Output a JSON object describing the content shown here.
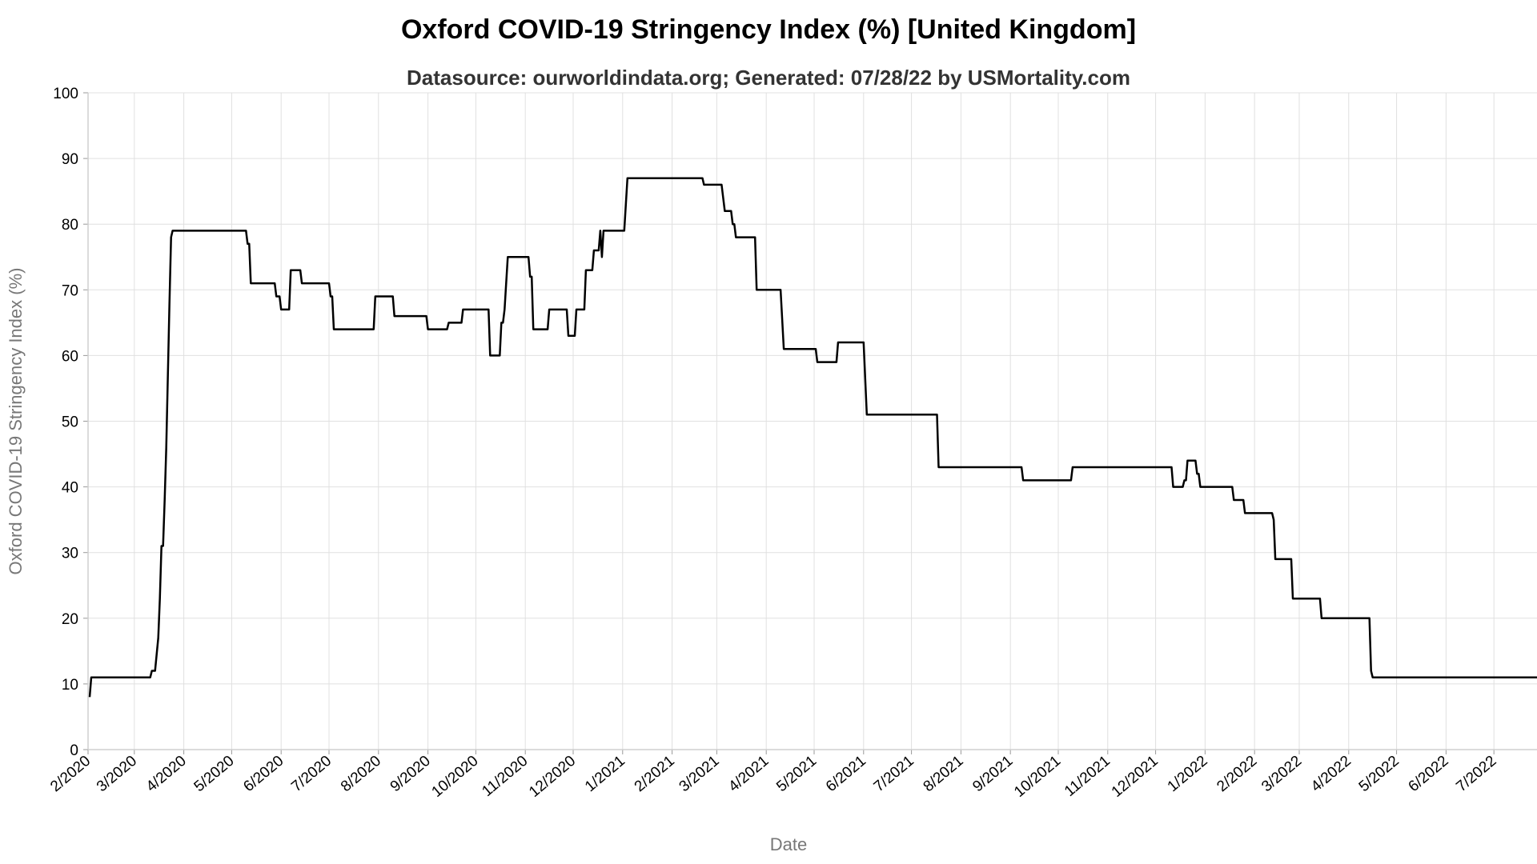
{
  "chart_data": {
    "type": "line",
    "title": "Oxford COVID-19 Stringency Index (%) [United Kingdom]",
    "subtitle": "Datasource: ourworldindata.org; Generated: 07/28/22 by USMortality.com",
    "xlabel": "Date",
    "ylabel": "Oxford COVID-19 Stringency Index (%)",
    "ylim": [
      0,
      100
    ],
    "xlim": [
      "2020-02-01",
      "2022-07-28"
    ],
    "yticks": [
      0,
      10,
      20,
      30,
      40,
      50,
      60,
      70,
      80,
      90,
      100
    ],
    "xticks": [
      {
        "date": "2020-02-01",
        "label": "2/2020"
      },
      {
        "date": "2020-03-01",
        "label": "3/2020"
      },
      {
        "date": "2020-04-01",
        "label": "4/2020"
      },
      {
        "date": "2020-05-01",
        "label": "5/2020"
      },
      {
        "date": "2020-06-01",
        "label": "6/2020"
      },
      {
        "date": "2020-07-01",
        "label": "7/2020"
      },
      {
        "date": "2020-08-01",
        "label": "8/2020"
      },
      {
        "date": "2020-09-01",
        "label": "9/2020"
      },
      {
        "date": "2020-10-01",
        "label": "10/2020"
      },
      {
        "date": "2020-11-01",
        "label": "11/2020"
      },
      {
        "date": "2020-12-01",
        "label": "12/2020"
      },
      {
        "date": "2021-01-01",
        "label": "1/2021"
      },
      {
        "date": "2021-02-01",
        "label": "2/2021"
      },
      {
        "date": "2021-03-01",
        "label": "3/2021"
      },
      {
        "date": "2021-04-01",
        "label": "4/2021"
      },
      {
        "date": "2021-05-01",
        "label": "5/2021"
      },
      {
        "date": "2021-06-01",
        "label": "6/2021"
      },
      {
        "date": "2021-07-01",
        "label": "7/2021"
      },
      {
        "date": "2021-08-01",
        "label": "8/2021"
      },
      {
        "date": "2021-09-01",
        "label": "9/2021"
      },
      {
        "date": "2021-10-01",
        "label": "10/2021"
      },
      {
        "date": "2021-11-01",
        "label": "11/2021"
      },
      {
        "date": "2021-12-01",
        "label": "12/2021"
      },
      {
        "date": "2022-01-01",
        "label": "1/2022"
      },
      {
        "date": "2022-02-01",
        "label": "2/2022"
      },
      {
        "date": "2022-03-01",
        "label": "3/2022"
      },
      {
        "date": "2022-04-01",
        "label": "4/2022"
      },
      {
        "date": "2022-05-01",
        "label": "5/2022"
      },
      {
        "date": "2022-06-01",
        "label": "6/2022"
      },
      {
        "date": "2022-07-01",
        "label": "7/2022"
      }
    ],
    "grid": true,
    "line_color": "#000000",
    "grid_color": "#e0e0e0",
    "series": [
      {
        "points": [
          [
            "2020-02-02",
            8
          ],
          [
            "2020-02-03",
            11
          ],
          [
            "2020-03-11",
            11
          ],
          [
            "2020-03-12",
            12
          ],
          [
            "2020-03-14",
            12
          ],
          [
            "2020-03-16",
            17
          ],
          [
            "2020-03-17",
            23
          ],
          [
            "2020-03-18",
            31
          ],
          [
            "2020-03-19",
            31
          ],
          [
            "2020-03-20",
            38
          ],
          [
            "2020-03-21",
            46
          ],
          [
            "2020-03-22",
            57
          ],
          [
            "2020-03-23",
            68
          ],
          [
            "2020-03-24",
            78
          ],
          [
            "2020-03-25",
            79
          ],
          [
            "2020-05-10",
            79
          ],
          [
            "2020-05-11",
            77
          ],
          [
            "2020-05-12",
            77
          ],
          [
            "2020-05-13",
            71
          ],
          [
            "2020-05-28",
            71
          ],
          [
            "2020-05-29",
            69
          ],
          [
            "2020-05-31",
            69
          ],
          [
            "2020-06-01",
            67
          ],
          [
            "2020-06-06",
            67
          ],
          [
            "2020-06-07",
            73
          ],
          [
            "2020-06-13",
            73
          ],
          [
            "2020-06-14",
            71
          ],
          [
            "2020-07-01",
            71
          ],
          [
            "2020-07-02",
            69
          ],
          [
            "2020-07-03",
            69
          ],
          [
            "2020-07-04",
            64
          ],
          [
            "2020-07-29",
            64
          ],
          [
            "2020-07-30",
            69
          ],
          [
            "2020-08-10",
            69
          ],
          [
            "2020-08-11",
            66
          ],
          [
            "2020-08-31",
            66
          ],
          [
            "2020-09-01",
            64
          ],
          [
            "2020-09-13",
            64
          ],
          [
            "2020-09-14",
            65
          ],
          [
            "2020-09-22",
            65
          ],
          [
            "2020-09-23",
            67
          ],
          [
            "2020-10-09",
            67
          ],
          [
            "2020-10-10",
            60
          ],
          [
            "2020-10-16",
            60
          ],
          [
            "2020-10-17",
            65
          ],
          [
            "2020-10-18",
            65
          ],
          [
            "2020-10-19",
            67
          ],
          [
            "2020-10-21",
            75
          ],
          [
            "2020-11-03",
            75
          ],
          [
            "2020-11-04",
            72
          ],
          [
            "2020-11-05",
            72
          ],
          [
            "2020-11-06",
            64
          ],
          [
            "2020-11-15",
            64
          ],
          [
            "2020-11-16",
            67
          ],
          [
            "2020-11-27",
            67
          ],
          [
            "2020-11-28",
            63
          ],
          [
            "2020-12-02",
            63
          ],
          [
            "2020-12-03",
            67
          ],
          [
            "2020-12-08",
            67
          ],
          [
            "2020-12-09",
            73
          ],
          [
            "2020-12-13",
            73
          ],
          [
            "2020-12-14",
            76
          ],
          [
            "2020-12-17",
            76
          ],
          [
            "2020-12-18",
            79
          ],
          [
            "2020-12-19",
            75
          ],
          [
            "2020-12-20",
            79
          ],
          [
            "2021-01-02",
            79
          ],
          [
            "2021-01-04",
            87
          ],
          [
            "2021-02-20",
            87
          ],
          [
            "2021-02-21",
            86
          ],
          [
            "2021-03-04",
            86
          ],
          [
            "2021-03-06",
            82
          ],
          [
            "2021-03-10",
            82
          ],
          [
            "2021-03-11",
            80
          ],
          [
            "2021-03-12",
            80
          ],
          [
            "2021-03-13",
            78
          ],
          [
            "2021-03-25",
            78
          ],
          [
            "2021-03-26",
            70
          ],
          [
            "2021-04-10",
            70
          ],
          [
            "2021-04-12",
            61
          ],
          [
            "2021-05-02",
            61
          ],
          [
            "2021-05-03",
            59
          ],
          [
            "2021-05-15",
            59
          ],
          [
            "2021-05-16",
            62
          ],
          [
            "2021-06-01",
            62
          ],
          [
            "2021-06-03",
            51
          ],
          [
            "2021-07-17",
            51
          ],
          [
            "2021-07-18",
            43
          ],
          [
            "2021-09-08",
            43
          ],
          [
            "2021-09-09",
            41
          ],
          [
            "2021-10-09",
            41
          ],
          [
            "2021-10-10",
            43
          ],
          [
            "2021-12-11",
            43
          ],
          [
            "2021-12-12",
            40
          ],
          [
            "2021-12-18",
            40
          ],
          [
            "2021-12-19",
            41
          ],
          [
            "2021-12-20",
            41
          ],
          [
            "2021-12-21",
            44
          ],
          [
            "2021-12-26",
            44
          ],
          [
            "2021-12-27",
            42
          ],
          [
            "2021-12-28",
            42
          ],
          [
            "2021-12-29",
            40
          ],
          [
            "2022-01-18",
            40
          ],
          [
            "2022-01-19",
            38
          ],
          [
            "2022-01-25",
            38
          ],
          [
            "2022-01-26",
            36
          ],
          [
            "2022-02-12",
            36
          ],
          [
            "2022-02-13",
            35
          ],
          [
            "2022-02-14",
            29
          ],
          [
            "2022-02-24",
            29
          ],
          [
            "2022-02-25",
            23
          ],
          [
            "2022-03-14",
            23
          ],
          [
            "2022-03-15",
            20
          ],
          [
            "2022-04-14",
            20
          ],
          [
            "2022-04-15",
            12
          ],
          [
            "2022-04-16",
            11
          ],
          [
            "2022-07-28",
            11
          ]
        ]
      }
    ]
  }
}
